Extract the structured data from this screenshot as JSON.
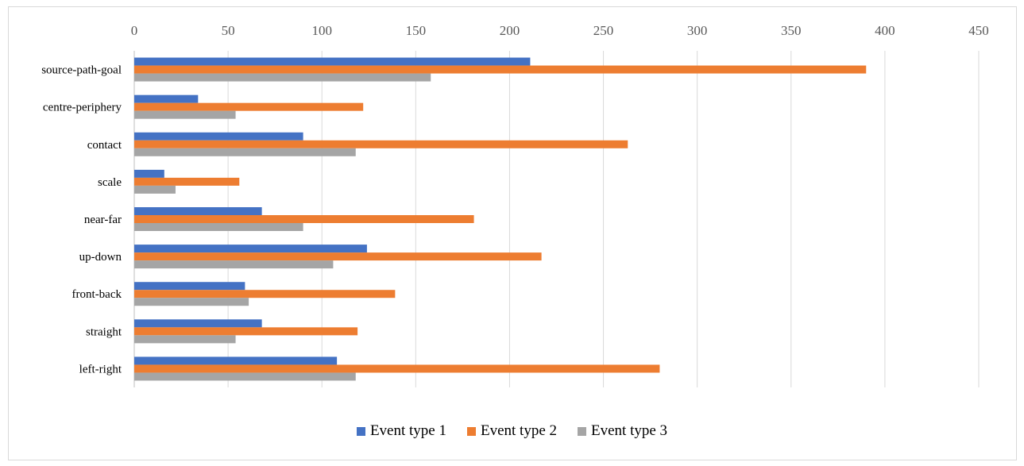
{
  "chart_data": {
    "type": "bar",
    "orientation": "horizontal",
    "categories": [
      "source-path-goal",
      "centre-periphery",
      "contact",
      "scale",
      "near-far",
      "up-down",
      "front-back",
      "straight",
      "left-right"
    ],
    "series": [
      {
        "name": "Event type 1",
        "color": "#4472c4",
        "values": [
          211,
          34,
          90,
          16,
          68,
          124,
          59,
          68,
          108
        ]
      },
      {
        "name": "Event type 2",
        "color": "#ed7d31",
        "values": [
          390,
          122,
          263,
          56,
          181,
          217,
          139,
          119,
          280
        ]
      },
      {
        "name": "Event type 3",
        "color": "#a5a5a5",
        "values": [
          158,
          54,
          118,
          22,
          90,
          106,
          61,
          54,
          118
        ]
      }
    ],
    "xlim": [
      0,
      450
    ],
    "xticks": [
      "0",
      "50",
      "100",
      "150",
      "200",
      "250",
      "300",
      "350",
      "400",
      "450"
    ],
    "xaxis_position": "top",
    "grid": true,
    "legend": "bottom"
  }
}
